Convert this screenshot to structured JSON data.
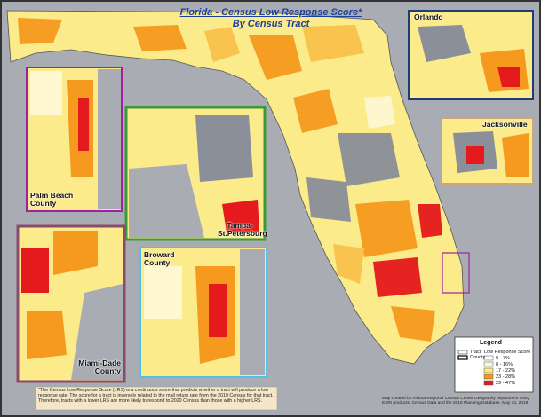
{
  "title": {
    "line1": "Florida - Census Low Response Score*",
    "line2": "By Census Tract"
  },
  "insets": [
    {
      "label": "Orlando"
    },
    {
      "label": "Jacksonville"
    },
    {
      "label": "Palm Beach County"
    },
    {
      "label": "Tampa-St.Petersburg"
    },
    {
      "label": "Broward County"
    },
    {
      "label": "Miami-Dade County"
    }
  ],
  "legend": {
    "title": "Legend",
    "boundaries": [
      "Tract",
      "County"
    ],
    "subtitle": "Low Response Score",
    "classes": [
      "0 - 7%",
      "8 - 16%",
      "17 - 22%",
      "23 - 28%",
      "29 - 47%"
    ]
  },
  "footnote": "*The Census Low Response Score (LRS) is a continuous score that predicts whether a tract will produce a low response rate. The score for a tract is inversely related to the mail return rate from the 2010 Census for that tract. Therefore, tracts with a lower LRS are more likely to respond to 2020 Census than those with a higher LRS.",
  "credit": "Map created by Atlanta Regional Census Center Geography department using ESRI products, Census Data and the 2019 Planning Database. May 14, 2019"
}
